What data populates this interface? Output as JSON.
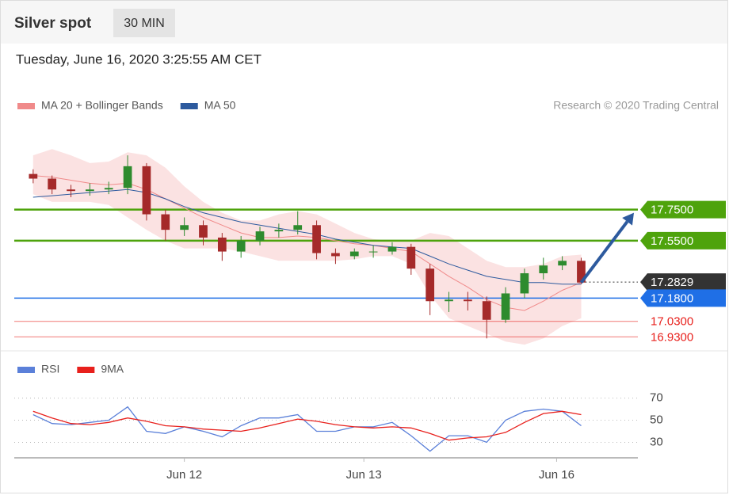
{
  "header": {
    "title": "Silver spot",
    "timeframe": "30 MIN"
  },
  "chart_data": [
    {
      "type": "candlestick",
      "subtitle": "Tuesday, June 16, 2020 3:25:55 AM CET",
      "credit": "Research © 2020 Trading Central",
      "x": [
        1,
        2,
        3,
        4,
        5,
        6,
        7,
        8,
        9,
        10,
        11,
        12,
        13,
        14,
        15,
        16,
        17,
        18,
        19,
        20,
        21,
        22,
        23,
        24,
        25,
        26,
        27,
        28,
        29,
        30
      ],
      "open": [
        17.98,
        17.95,
        17.88,
        17.87,
        17.88,
        17.89,
        18.03,
        17.72,
        17.62,
        17.65,
        17.57,
        17.48,
        17.55,
        17.61,
        17.62,
        17.65,
        17.47,
        17.45,
        17.48,
        17.48,
        17.51,
        17.37,
        17.16,
        17.17,
        17.16,
        17.04,
        17.21,
        17.34,
        17.39,
        17.42
      ],
      "high": [
        18.01,
        17.97,
        17.91,
        17.92,
        17.93,
        18.1,
        18.05,
        17.75,
        17.7,
        17.68,
        17.6,
        17.58,
        17.64,
        17.66,
        17.74,
        17.68,
        17.5,
        17.5,
        17.52,
        17.54,
        17.53,
        17.4,
        17.22,
        17.22,
        17.19,
        17.25,
        17.37,
        17.44,
        17.45,
        17.44
      ],
      "low": [
        17.92,
        17.85,
        17.83,
        17.84,
        17.85,
        17.85,
        17.68,
        17.55,
        17.58,
        17.52,
        17.42,
        17.44,
        17.52,
        17.57,
        17.59,
        17.43,
        17.4,
        17.43,
        17.44,
        17.46,
        17.33,
        17.07,
        17.09,
        17.1,
        16.92,
        17.02,
        17.18,
        17.3,
        17.36,
        17.27
      ],
      "close": [
        17.95,
        17.88,
        17.87,
        17.88,
        17.89,
        18.03,
        17.72,
        17.62,
        17.65,
        17.57,
        17.48,
        17.55,
        17.61,
        17.62,
        17.65,
        17.47,
        17.45,
        17.48,
        17.48,
        17.51,
        17.37,
        17.16,
        17.17,
        17.16,
        17.04,
        17.21,
        17.34,
        17.39,
        17.42,
        17.28
      ],
      "up_color": "#2e8b2e",
      "down_color": "#a52a2a",
      "xlim": [
        0,
        33
      ],
      "ylim": [
        16.86,
        18.31
      ],
      "series": [
        {
          "name": "MA 20 + Bollinger Bands",
          "color": "#f08a8a",
          "values": [
            17.97,
            17.96,
            17.94,
            17.92,
            17.91,
            17.92,
            17.88,
            17.82,
            17.76,
            17.7,
            17.65,
            17.6,
            17.57,
            17.57,
            17.58,
            17.57,
            17.55,
            17.53,
            17.52,
            17.5,
            17.48,
            17.4,
            17.32,
            17.25,
            17.17,
            17.12,
            17.1,
            17.16,
            17.23,
            17.28
          ],
          "upper": [
            18.1,
            18.14,
            18.1,
            18.05,
            18.06,
            18.12,
            18.1,
            18.02,
            17.9,
            17.8,
            17.73,
            17.68,
            17.68,
            17.72,
            17.74,
            17.72,
            17.66,
            17.6,
            17.56,
            17.55,
            17.55,
            17.6,
            17.58,
            17.5,
            17.42,
            17.38,
            17.38,
            17.4,
            17.45,
            17.46
          ],
          "lower": [
            17.85,
            17.8,
            17.8,
            17.8,
            17.78,
            17.7,
            17.62,
            17.55,
            17.5,
            17.5,
            17.5,
            17.48,
            17.45,
            17.42,
            17.42,
            17.42,
            17.42,
            17.43,
            17.45,
            17.45,
            17.4,
            17.2,
            17.05,
            17.0,
            16.95,
            16.9,
            16.88,
            16.92,
            17.0,
            17.05
          ]
        },
        {
          "name": "MA 50",
          "color": "#2d5a9e",
          "values": [
            17.83,
            17.84,
            17.85,
            17.86,
            17.87,
            17.88,
            17.86,
            17.82,
            17.77,
            17.73,
            17.7,
            17.67,
            17.65,
            17.63,
            17.61,
            17.59,
            17.56,
            17.54,
            17.52,
            17.51,
            17.5,
            17.45,
            17.4,
            17.36,
            17.32,
            17.3,
            17.28,
            17.28,
            17.27,
            17.27
          ]
        }
      ],
      "levels": [
        {
          "value": 17.75,
          "label": "17.7500",
          "color": "#4ea30c",
          "box": true
        },
        {
          "value": 17.55,
          "label": "17.5500",
          "color": "#4ea30c",
          "box": true
        },
        {
          "value": 17.2829,
          "label": "17.2829",
          "color": "#333333",
          "box": true
        },
        {
          "value": 17.18,
          "label": "17.1800",
          "color": "#1f6fe6",
          "box": true
        },
        {
          "value": 17.03,
          "label": "17.0300",
          "color": "#e8201c",
          "box": false
        },
        {
          "value": 16.93,
          "label": "16.9300",
          "color": "#e8201c",
          "box": false
        }
      ]
    },
    {
      "type": "line",
      "x": [
        1,
        2,
        3,
        4,
        5,
        6,
        7,
        8,
        9,
        10,
        11,
        12,
        13,
        14,
        15,
        16,
        17,
        18,
        19,
        20,
        21,
        22,
        23,
        24,
        25,
        26,
        27,
        28,
        29,
        30
      ],
      "xlim": [
        0,
        33
      ],
      "ylim": [
        16,
        79
      ],
      "xticks": [
        {
          "value": 9,
          "label": "Jun 12"
        },
        {
          "value": 18.5,
          "label": "Jun 13"
        },
        {
          "value": 28.7,
          "label": "Jun 16"
        }
      ],
      "yticks": [
        30,
        50,
        70
      ],
      "series": [
        {
          "name": "RSI",
          "color": "#5b80d9",
          "values": [
            55,
            47,
            46,
            48,
            50,
            62,
            40,
            38,
            44,
            40,
            35,
            45,
            52,
            52,
            55,
            40,
            40,
            44,
            44,
            48,
            36,
            22,
            36,
            36,
            30,
            50,
            58,
            60,
            58,
            45
          ]
        },
        {
          "name": "9MA",
          "color": "#e8201c",
          "values": [
            58,
            52,
            47,
            46,
            48,
            52,
            49,
            45,
            44,
            42,
            41,
            40,
            43,
            47,
            51,
            49,
            46,
            44,
            43,
            44,
            43,
            38,
            32,
            34,
            35,
            39,
            48,
            56,
            58,
            55
          ]
        }
      ]
    }
  ]
}
